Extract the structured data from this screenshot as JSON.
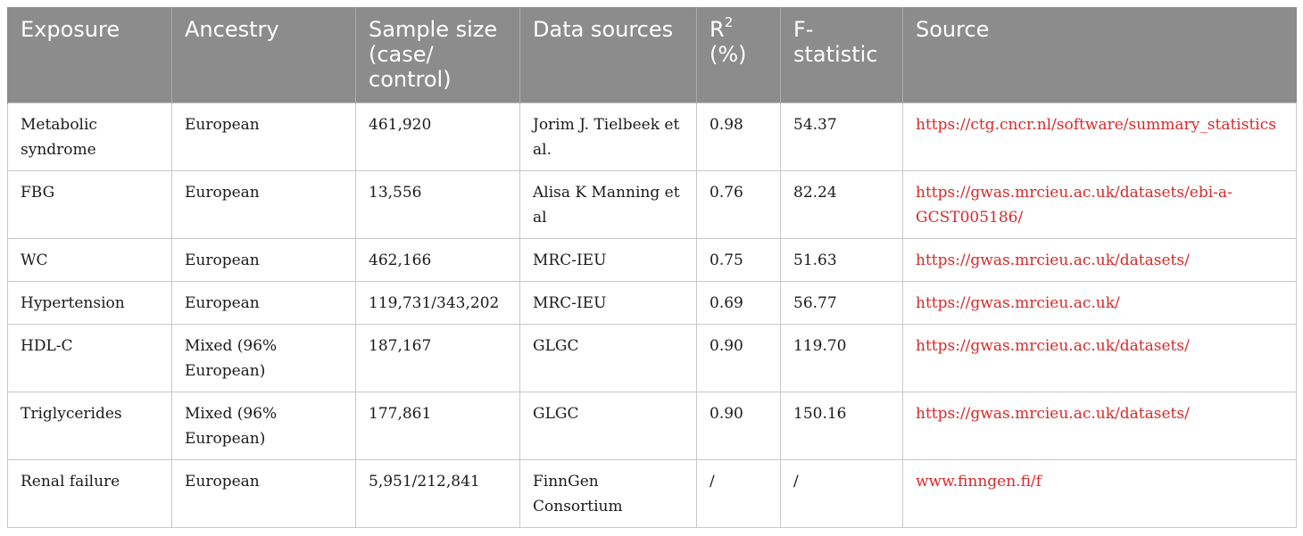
{
  "table": {
    "headers": [
      {
        "main": "Exposure",
        "sup": ""
      },
      {
        "main": "Ancestry",
        "sup": ""
      },
      {
        "main": "Sample size (case/ control)",
        "sup": ""
      },
      {
        "main": "Data sources",
        "sup": ""
      },
      {
        "main": "R",
        "sup": "2",
        "after": " (%)"
      },
      {
        "main": "F-statistic",
        "sup": ""
      },
      {
        "main": "Source",
        "sup": ""
      }
    ],
    "rows": [
      {
        "exposure": "Metabolic syndrome",
        "ancestry": "European",
        "sample_size": "461,920",
        "data_sources": "Jorim J. Tielbeek et al.",
        "r2": "0.98",
        "f_statistic": "54.37",
        "source": "https://ctg.cncr.nl/software/summary_statistics"
      },
      {
        "exposure": "FBG",
        "ancestry": "European",
        "sample_size": "13,556",
        "data_sources": "Alisa K Manning et al",
        "r2": "0.76",
        "f_statistic": "82.24",
        "source": "https://gwas.mrcieu.ac.uk/datasets/ebi-a-GCST005186/"
      },
      {
        "exposure": "WC",
        "ancestry": "European",
        "sample_size": "462,166",
        "data_sources": "MRC-IEU",
        "r2": "0.75",
        "f_statistic": "51.63",
        "source": "https://gwas.mrcieu.ac.uk/datasets/"
      },
      {
        "exposure": "Hypertension",
        "ancestry": "European",
        "sample_size": "119,731/343,202",
        "data_sources": "MRC-IEU",
        "r2": "0.69",
        "f_statistic": "56.77",
        "source": "https://gwas.mrcieu.ac.uk/"
      },
      {
        "exposure": "HDL-C",
        "ancestry": "Mixed (96% European)",
        "sample_size": "187,167",
        "data_sources": "GLGC",
        "r2": "0.90",
        "f_statistic": "119.70",
        "source": "https://gwas.mrcieu.ac.uk/datasets/"
      },
      {
        "exposure": "Triglycerides",
        "ancestry": "Mixed (96% European)",
        "sample_size": "177,861",
        "data_sources": "GLGC",
        "r2": "0.90",
        "f_statistic": "150.16",
        "source": "https://gwas.mrcieu.ac.uk/datasets/"
      },
      {
        "exposure": "Renal failure",
        "ancestry": "European",
        "sample_size": "5,951/212,841",
        "data_sources": "FinnGen Consortium",
        "r2": "/",
        "f_statistic": "/",
        "source": "www.finngen.fi/f"
      }
    ]
  },
  "colors": {
    "header_bg": "#8c8c8c",
    "header_text": "#ffffff",
    "link_text": "#d62a2a",
    "border": "#c8c8c8"
  }
}
